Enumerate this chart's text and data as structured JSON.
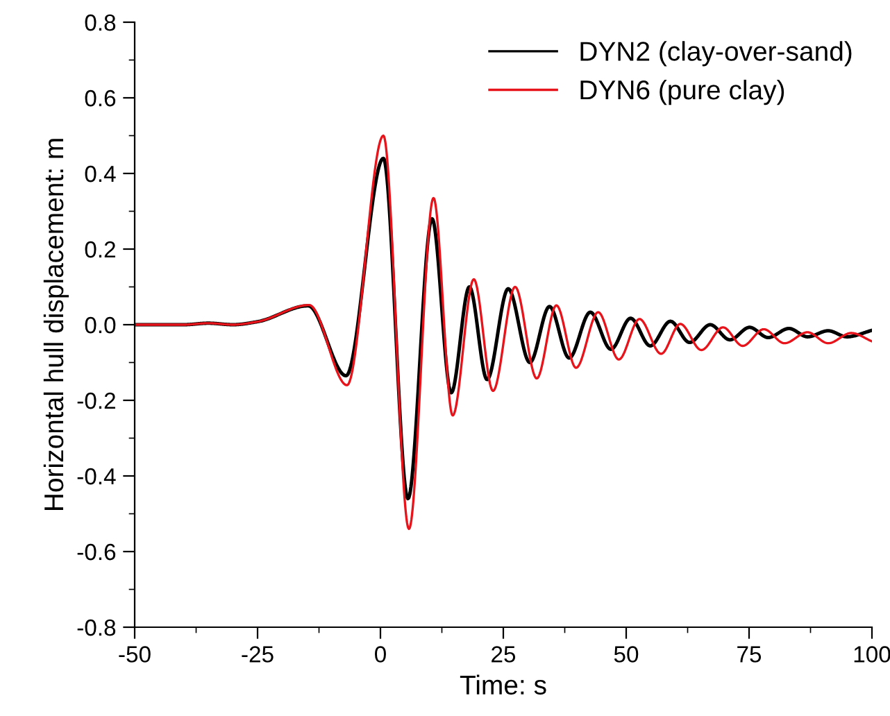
{
  "chart_data": {
    "type": "line",
    "xlabel": "Time: s",
    "ylabel": "Horizontal hull displacement: m",
    "xlim": [
      -50,
      100
    ],
    "xticks": [
      -50,
      -25,
      0,
      25,
      50,
      75,
      100
    ],
    "ylim": [
      -0.8,
      0.8
    ],
    "yticks": [
      -0.8,
      -0.6,
      -0.4,
      -0.2,
      {
        "value": 0,
        "label": "0.0"
      },
      0.2,
      0.4,
      0.6,
      0.8
    ],
    "grid": false,
    "legend": "top right",
    "marker": "none",
    "line_style": "solid",
    "series": [
      {
        "name": "DYN2 (clay-over-sand)",
        "color": "#000000",
        "x": [
          -50,
          -40,
          -35,
          -30,
          -25,
          -14.7,
          -7,
          0.6,
          5.6,
          10.5,
          14.4,
          18.1,
          21.7,
          26,
          30.4,
          34.4,
          38.4,
          42.7,
          46.9,
          50.9,
          54.9,
          59,
          62.9,
          67.1,
          71.1,
          75.1,
          78.9,
          83.1,
          86.9,
          91.1,
          94.9,
          100
        ],
        "values": [
          0,
          0,
          0.004,
          0,
          0.008,
          0.05,
          -0.135,
          0.44,
          -0.46,
          0.28,
          -0.18,
          0.1,
          -0.145,
          0.095,
          -0.1,
          0.048,
          -0.088,
          0.033,
          -0.065,
          0.017,
          -0.056,
          0.009,
          -0.047,
          0,
          -0.04,
          -0.007,
          -0.034,
          -0.01,
          -0.032,
          -0.016,
          -0.032,
          -0.015
        ]
      },
      {
        "name": "DYN6 (pure clay)",
        "color": "#e8141c",
        "x": [
          -50,
          -40,
          -35,
          -30,
          -25,
          -14.5,
          -6.8,
          0.6,
          5.8,
          10.8,
          14.7,
          19,
          22.9,
          27.4,
          31.8,
          35.8,
          39.8,
          44.3,
          48.5,
          52.7,
          57.1,
          61,
          65.3,
          69.7,
          73.7,
          78,
          82.2,
          86.9,
          91.1,
          95.8,
          100
        ],
        "values": [
          0,
          0,
          0.004,
          0,
          0.008,
          0.052,
          -0.16,
          0.5,
          -0.54,
          0.335,
          -0.24,
          0.12,
          -0.175,
          0.1,
          -0.142,
          0.051,
          -0.114,
          0.033,
          -0.092,
          0.015,
          -0.077,
          0.002,
          -0.067,
          -0.007,
          -0.056,
          -0.012,
          -0.049,
          -0.02,
          -0.049,
          -0.022,
          -0.044
        ]
      }
    ]
  }
}
